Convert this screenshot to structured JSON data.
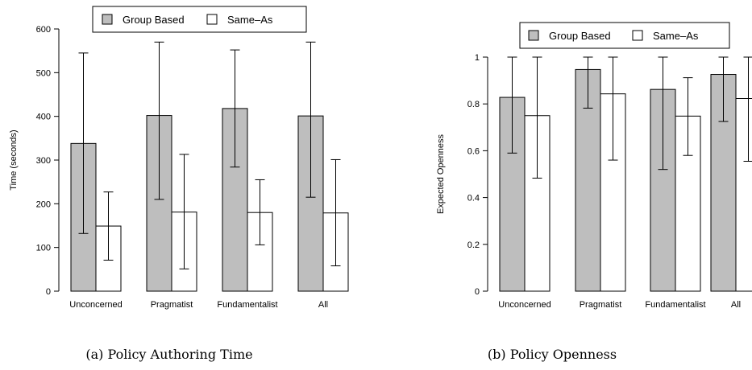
{
  "chart_data": [
    {
      "type": "bar",
      "panel": "a",
      "caption": "(a) Policy Authoring Time",
      "ylabel": "Time (seconds)",
      "ylim": [
        0,
        600
      ],
      "yticks": [
        0,
        100,
        200,
        300,
        400,
        500,
        600
      ],
      "ytick_labels": [
        "0",
        "100",
        "200",
        "300",
        "400",
        "500",
        "600"
      ],
      "categories": [
        "Unconcerned",
        "Pragmatist",
        "Fundamentalist",
        "All"
      ],
      "series": [
        {
          "name": "Group Based",
          "values": [
            338,
            402,
            418,
            401
          ],
          "err_low": [
            132,
            210,
            284,
            215
          ],
          "err_high": [
            545,
            570,
            552,
            570
          ],
          "color": "#bebebe"
        },
        {
          "name": "Same–As",
          "values": [
            149,
            181,
            180,
            179
          ],
          "err_low": [
            71,
            51,
            106,
            58
          ],
          "err_high": [
            227,
            313,
            255,
            301
          ],
          "color": "#ffffff"
        }
      ],
      "legend": "top"
    },
    {
      "type": "bar",
      "panel": "b",
      "caption": "(b) Policy Openness",
      "ylabel": "Expected Openness",
      "ylim": [
        0,
        1
      ],
      "yticks": [
        0,
        0.2,
        0.4,
        0.6,
        0.8,
        1
      ],
      "ytick_labels": [
        "0",
        "0.2",
        "0.4",
        "0.6",
        "0.8",
        "1"
      ],
      "categories": [
        "Unconcerned",
        "Pragmatist",
        "Fundamentalist",
        "All"
      ],
      "series": [
        {
          "name": "Group Based",
          "values": [
            0.828,
            0.947,
            0.862,
            0.926
          ],
          "err_low": [
            0.59,
            0.782,
            0.52,
            0.725
          ],
          "err_high": [
            1.0,
            1.0,
            1.0,
            1.0
          ],
          "color": "#bebebe"
        },
        {
          "name": "Same–As",
          "values": [
            0.75,
            0.843,
            0.748,
            0.823
          ],
          "err_low": [
            0.483,
            0.56,
            0.58,
            0.555
          ],
          "err_high": [
            1.0,
            1.0,
            0.912,
            1.0
          ],
          "color": "#ffffff"
        }
      ],
      "legend": "top"
    }
  ]
}
